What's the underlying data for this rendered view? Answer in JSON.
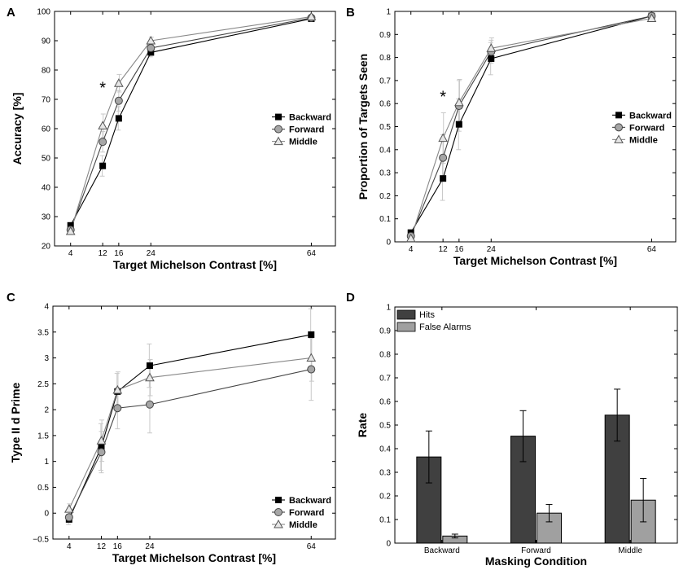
{
  "chart_data": [
    {
      "panel": "A",
      "type": "line",
      "xlabel": "Target Michelson Contrast [%]",
      "ylabel": "Accuracy [%]",
      "x": [
        4,
        12,
        16,
        24,
        64
      ],
      "x_ticks": [
        "4",
        "12",
        "16",
        "24",
        "64"
      ],
      "xlim": [
        0,
        70
      ],
      "ylim": [
        20,
        100
      ],
      "y_ticks": [
        "20",
        "30",
        "40",
        "50",
        "60",
        "70",
        "80",
        "90",
        "100"
      ],
      "annotation": "*",
      "annotation_x": 12,
      "annotation_y": 74,
      "legend": "right",
      "series": [
        {
          "name": "Backward",
          "marker": "square",
          "color": "#000000",
          "values": [
            27,
            47.3,
            63.5,
            86,
            97.5
          ],
          "errors": [
            0.6,
            3.5,
            4.0,
            1.5,
            0.5
          ]
        },
        {
          "name": "Forward",
          "marker": "circle",
          "color": "#444444",
          "values": [
            25.5,
            55.5,
            69.5,
            87.5,
            97.8
          ],
          "errors": [
            0.6,
            3.5,
            3.5,
            1.5,
            0.5
          ]
        },
        {
          "name": "Middle",
          "marker": "triangle",
          "color": "#888888",
          "values": [
            25,
            61,
            75.5,
            90,
            98.2
          ],
          "errors": [
            0.6,
            4.0,
            3.0,
            1.2,
            0.5
          ]
        }
      ]
    },
    {
      "panel": "B",
      "type": "line",
      "xlabel": "Target Michelson Contrast [%]",
      "ylabel": "Proportion of Targets Seen",
      "x": [
        4,
        12,
        16,
        24,
        64
      ],
      "x_ticks": [
        "4",
        "12",
        "16",
        "24",
        "64"
      ],
      "xlim": [
        0,
        70
      ],
      "ylim": [
        0,
        1
      ],
      "y_ticks": [
        "0",
        "0.1",
        "0.2",
        "0.3",
        "0.4",
        "0.5",
        "0.6",
        "0.7",
        "0.8",
        "0.9",
        "1"
      ],
      "annotation": "*",
      "annotation_x": 12,
      "annotation_y": 0.63,
      "legend": "right",
      "series": [
        {
          "name": "Backward",
          "marker": "square",
          "color": "#000000",
          "values": [
            0.04,
            0.275,
            0.51,
            0.795,
            0.98
          ],
          "errors": [
            0.01,
            0.095,
            0.11,
            0.07,
            0.01
          ]
        },
        {
          "name": "Forward",
          "marker": "circle",
          "color": "#444444",
          "values": [
            0.025,
            0.365,
            0.59,
            0.825,
            0.98
          ],
          "errors": [
            0.01,
            0.1,
            0.11,
            0.05,
            0.01
          ]
        },
        {
          "name": "Middle",
          "marker": "triangle",
          "color": "#888888",
          "values": [
            0.015,
            0.45,
            0.605,
            0.84,
            0.97
          ],
          "errors": [
            0.01,
            0.11,
            0.1,
            0.045,
            0.01
          ]
        }
      ]
    },
    {
      "panel": "C",
      "type": "line",
      "xlabel": "Target Michelson Contrast [%]",
      "ylabel": "Type II d Prime",
      "x": [
        4,
        12,
        16,
        24,
        64
      ],
      "x_ticks": [
        "4",
        "12",
        "16",
        "24",
        "64"
      ],
      "xlim": [
        0,
        70
      ],
      "ylim": [
        -0.5,
        4
      ],
      "y_ticks": [
        "−0.5",
        "0",
        "0.5",
        "1",
        "1.5",
        "2",
        "2.5",
        "3",
        "3.5",
        "4"
      ],
      "legend": "bottom-right",
      "series": [
        {
          "name": "Backward",
          "marker": "square",
          "color": "#000000",
          "values": [
            -0.12,
            1.28,
            2.35,
            2.85,
            3.45
          ],
          "errors": [
            0.1,
            0.45,
            0.35,
            0.42,
            0.5
          ]
        },
        {
          "name": "Forward",
          "marker": "circle",
          "color": "#444444",
          "values": [
            -0.08,
            1.18,
            2.03,
            2.1,
            2.78
          ],
          "errors": [
            0.1,
            0.4,
            0.4,
            0.55,
            0.6
          ]
        },
        {
          "name": "Middle",
          "marker": "triangle",
          "color": "#888888",
          "values": [
            0.08,
            1.4,
            2.38,
            2.62,
            3.0
          ],
          "errors": [
            0.1,
            0.4,
            0.35,
            0.35,
            0.45
          ]
        }
      ]
    },
    {
      "panel": "D",
      "type": "bar",
      "xlabel": "Masking Condition",
      "ylabel": "Rate",
      "categories": [
        "Backward",
        "Forward",
        "Middle"
      ],
      "ylim": [
        0,
        1
      ],
      "y_ticks": [
        "0",
        "0.1",
        "0.2",
        "0.3",
        "0.4",
        "0.5",
        "0.6",
        "0.7",
        "0.8",
        "0.9",
        "1"
      ],
      "legend": "top-left",
      "series": [
        {
          "name": "Hits",
          "color": "#404040",
          "values": [
            0.365,
            0.453,
            0.542
          ],
          "errors": [
            0.11,
            0.108,
            0.11
          ]
        },
        {
          "name": "False Alarms",
          "color": "#a0a0a0",
          "values": [
            0.03,
            0.127,
            0.182
          ],
          "errors": [
            0.008,
            0.037,
            0.092
          ]
        }
      ]
    }
  ]
}
